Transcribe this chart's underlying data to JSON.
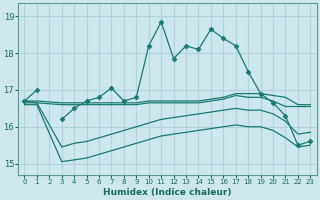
{
  "xlabel": "Humidex (Indice chaleur)",
  "bg_color": "#cce8ed",
  "grid_color": "#b0d4da",
  "line_color": "#1a7a6e",
  "xlim": [
    -0.5,
    23.5
  ],
  "ylim": [
    14.7,
    19.35
  ],
  "yticks": [
    15,
    16,
    17,
    18,
    19
  ],
  "xticks": [
    0,
    1,
    2,
    3,
    4,
    5,
    6,
    7,
    8,
    9,
    10,
    11,
    12,
    13,
    14,
    15,
    16,
    17,
    18,
    19,
    20,
    21,
    22,
    23
  ],
  "series": [
    {
      "x": [
        0,
        1,
        2,
        3,
        4,
        5,
        6,
        7,
        8,
        9,
        10,
        11,
        12,
        13,
        14,
        15,
        16,
        17,
        18,
        19,
        20,
        21,
        22,
        23
      ],
      "y": [
        16.7,
        17.0,
        null,
        16.2,
        16.5,
        16.7,
        16.8,
        17.05,
        16.7,
        16.8,
        18.2,
        18.85,
        17.85,
        18.2,
        18.1,
        18.65,
        18.4,
        18.2,
        17.5,
        16.9,
        16.65,
        16.3,
        15.5,
        15.6
      ],
      "marker": "D",
      "markersize": 2.5
    },
    {
      "x": [
        0,
        1,
        3,
        4,
        5,
        6,
        7,
        8,
        9,
        10,
        11,
        12,
        13,
        14,
        15,
        16,
        17,
        18,
        19,
        20,
        21,
        22,
        23
      ],
      "y": [
        16.7,
        16.7,
        16.65,
        16.65,
        16.65,
        16.65,
        16.65,
        16.65,
        16.65,
        16.7,
        16.7,
        16.7,
        16.7,
        16.7,
        16.75,
        16.8,
        16.9,
        16.9,
        16.9,
        16.85,
        16.8,
        16.6,
        16.6
      ],
      "marker": null,
      "markersize": 0
    },
    {
      "x": [
        0,
        1,
        3,
        4,
        5,
        6,
        7,
        8,
        9,
        10,
        11,
        12,
        13,
        14,
        15,
        16,
        17,
        18,
        19,
        20,
        21,
        22,
        23
      ],
      "y": [
        16.7,
        16.65,
        16.6,
        16.6,
        16.6,
        16.6,
        16.6,
        16.6,
        16.6,
        16.65,
        16.65,
        16.65,
        16.65,
        16.65,
        16.7,
        16.75,
        16.85,
        16.8,
        16.8,
        16.7,
        16.55,
        16.55,
        16.55
      ],
      "marker": null,
      "markersize": 0
    },
    {
      "x": [
        0,
        1,
        3,
        4,
        5,
        6,
        7,
        8,
        9,
        10,
        11,
        12,
        13,
        14,
        15,
        16,
        17,
        18,
        19,
        20,
        21,
        22,
        23
      ],
      "y": [
        16.65,
        16.65,
        15.45,
        15.55,
        15.6,
        15.7,
        15.8,
        15.9,
        16.0,
        16.1,
        16.2,
        16.25,
        16.3,
        16.35,
        16.4,
        16.45,
        16.5,
        16.45,
        16.45,
        16.35,
        16.15,
        15.8,
        15.85
      ],
      "marker": null,
      "markersize": 0
    },
    {
      "x": [
        0,
        1,
        3,
        4,
        5,
        6,
        7,
        8,
        9,
        10,
        11,
        12,
        13,
        14,
        15,
        16,
        17,
        18,
        19,
        20,
        21,
        22,
        23
      ],
      "y": [
        16.6,
        16.6,
        15.05,
        15.1,
        15.15,
        15.25,
        15.35,
        15.45,
        15.55,
        15.65,
        15.75,
        15.8,
        15.85,
        15.9,
        15.95,
        16.0,
        16.05,
        16.0,
        16.0,
        15.9,
        15.7,
        15.45,
        15.5
      ],
      "marker": null,
      "markersize": 0
    }
  ]
}
